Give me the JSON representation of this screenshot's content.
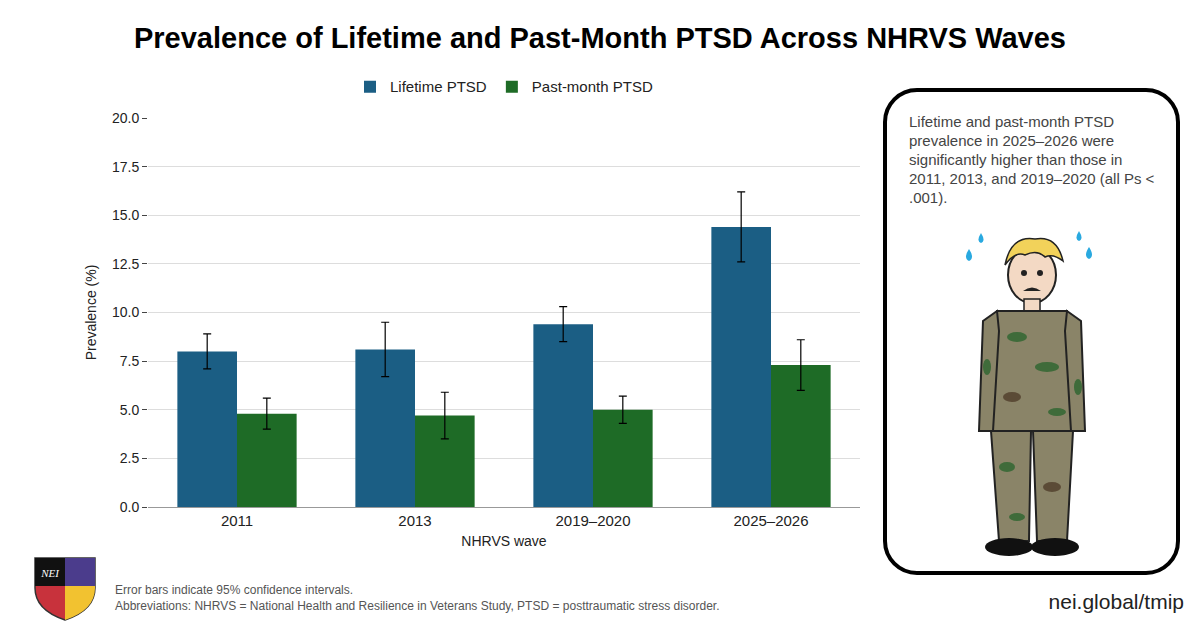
{
  "chart_data": {
    "type": "bar",
    "title": "Prevalence of Lifetime and Past-Month PTSD Across NHRVS Waves",
    "xlabel": "NHRVS wave",
    "ylabel": "Prevalence (%)",
    "categories": [
      "2011",
      "2013",
      "2019–2020",
      "2025–2026"
    ],
    "series": [
      {
        "name": "Lifetime PTSD",
        "color": "#1b5e84",
        "values": [
          8.0,
          8.1,
          9.4,
          14.4
        ],
        "ci_low": [
          7.1,
          6.7,
          8.5,
          12.6
        ],
        "ci_high": [
          8.9,
          9.5,
          10.3,
          16.2
        ]
      },
      {
        "name": "Past-month PTSD",
        "color": "#1e6b26",
        "values": [
          4.8,
          4.7,
          5.0,
          7.3
        ],
        "ci_low": [
          4.0,
          3.5,
          4.3,
          6.0
        ],
        "ci_high": [
          5.6,
          5.9,
          5.7,
          8.6
        ]
      }
    ],
    "ylim": [
      0,
      20
    ],
    "yticks": [
      {
        "value": 0,
        "label": "0.0"
      },
      2.5,
      {
        "value": 5,
        "label": "5.0"
      },
      7.5,
      {
        "value": 10,
        "label": "10.0"
      },
      12.5,
      {
        "value": 15,
        "label": "15.0"
      },
      17.5,
      {
        "value": 20,
        "label": "20.0"
      }
    ],
    "grid": true,
    "legend": "top"
  },
  "annotation": "Lifetime and past-month PTSD prevalence in 2025–2026 were significantly higher than those in 2011, 2013, and 2019–2020 (all Ps < .001).",
  "footnotes": [
    "Error bars indicate 95% confidence intervals.",
    "Abbreviations: NHRVS = National Health and Resilience in Veterans Study, PTSD = posttraumatic stress disorder."
  ],
  "url": "nei.global/tmip",
  "logo_text": "NEI"
}
